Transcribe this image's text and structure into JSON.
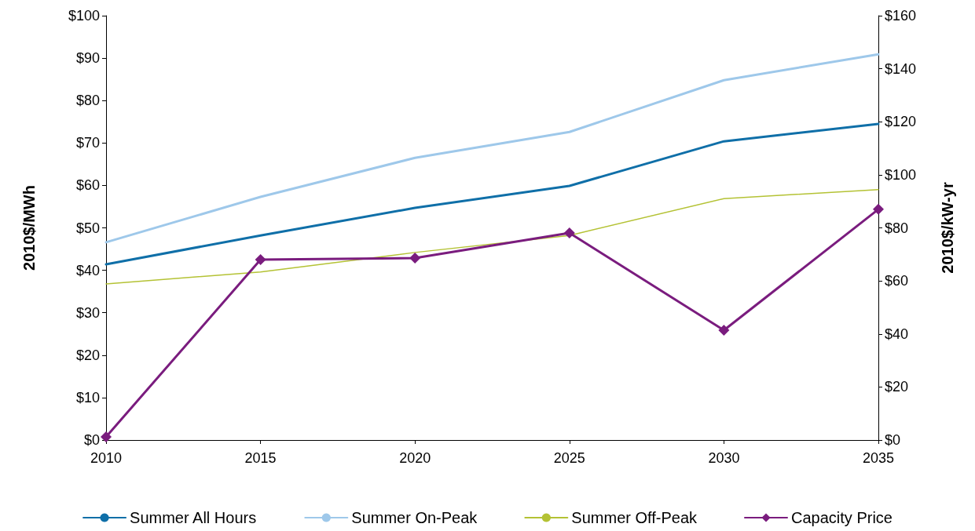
{
  "chart_data": {
    "type": "line",
    "ylabel": "2010$/MWh",
    "y2label": "2010$/kW-yr",
    "x": [
      2010,
      2015,
      2020,
      2025,
      2030,
      2035
    ],
    "xlim": [
      2010,
      2035
    ],
    "xticks": [
      2010,
      2015,
      2020,
      2025,
      2030,
      2035
    ],
    "ylim": [
      0,
      100
    ],
    "yticks": [
      {
        "value": 0,
        "label": "$0"
      },
      {
        "value": 10,
        "label": "$10"
      },
      {
        "value": 20,
        "label": "$20"
      },
      {
        "value": 30,
        "label": "$30"
      },
      {
        "value": 40,
        "label": "$40"
      },
      {
        "value": 50,
        "label": "$50"
      },
      {
        "value": 60,
        "label": "$60"
      },
      {
        "value": 70,
        "label": "$70"
      },
      {
        "value": 80,
        "label": "$80"
      },
      {
        "value": 90,
        "label": "$90"
      },
      {
        "value": 100,
        "label": "$100"
      }
    ],
    "y2lim": [
      0,
      160
    ],
    "y2ticks": [
      {
        "value": 0,
        "label": "$0"
      },
      {
        "value": 20,
        "label": "$20"
      },
      {
        "value": 40,
        "label": "$40"
      },
      {
        "value": 60,
        "label": "$60"
      },
      {
        "value": 80,
        "label": "$80"
      },
      {
        "value": 100,
        "label": "$100"
      },
      {
        "value": 120,
        "label": "$120"
      },
      {
        "value": 140,
        "label": "$140"
      },
      {
        "value": 160,
        "label": "$160"
      }
    ],
    "grid": false,
    "legend": "bottom",
    "line_style": "solid",
    "series": [
      {
        "name": "Summer All Hours",
        "color": "#0f6fa8",
        "marker": "none",
        "values": [
          41.4,
          48.2,
          54.7,
          59.9,
          70.4,
          74.5
        ]
      },
      {
        "name": "Summer On-Peak",
        "color": "#9ec8ea",
        "marker": "none",
        "values": [
          46.6,
          57.3,
          66.5,
          72.6,
          84.8,
          90.9
        ]
      },
      {
        "name": "Summer Off-Peak",
        "color": "#b4c234",
        "marker": "none",
        "values": [
          36.8,
          39.6,
          44.2,
          48.2,
          56.9,
          59.0
        ]
      },
      {
        "name": "Capacity Price",
        "color": "#7a1c7e",
        "marker": "diamond",
        "axis": "y2",
        "values": [
          1.2,
          68,
          68.6,
          78.1,
          41.4,
          87
        ]
      }
    ]
  }
}
